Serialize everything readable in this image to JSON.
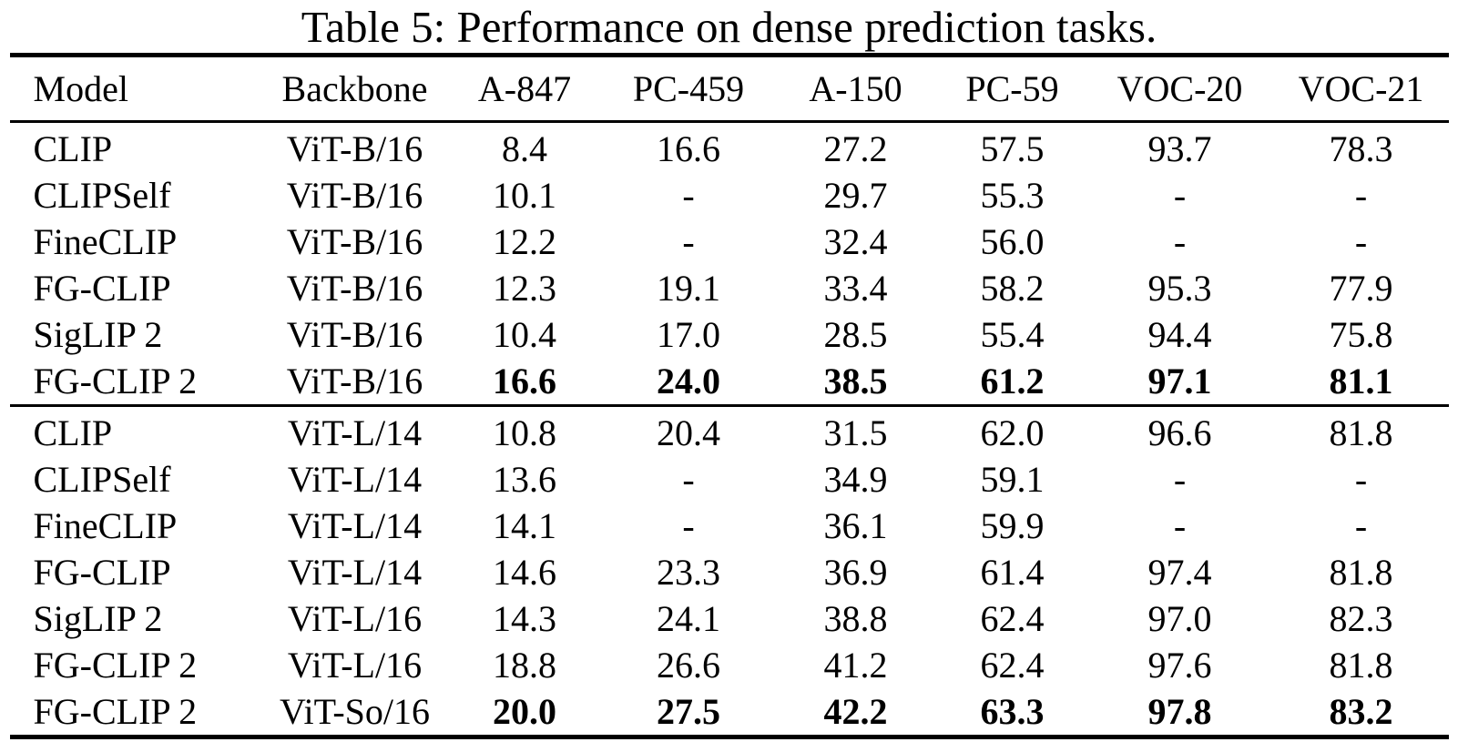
{
  "title": "Table 5: Performance on dense prediction tasks.",
  "colors": {
    "text": "#000000",
    "background": "#ffffff",
    "rule": "#000000"
  },
  "table": {
    "columns": [
      "Model",
      "Backbone",
      "A-847",
      "PC-459",
      "A-150",
      "PC-59",
      "VOC-20",
      "VOC-21"
    ],
    "groups": [
      {
        "rows": [
          {
            "model": "CLIP",
            "backbone": "ViT-B/16",
            "values": [
              "8.4",
              "16.6",
              "27.2",
              "57.5",
              "93.7",
              "78.3"
            ],
            "bold_values": false
          },
          {
            "model": "CLIPSelf",
            "backbone": "ViT-B/16",
            "values": [
              "10.1",
              "-",
              "29.7",
              "55.3",
              "-",
              "-"
            ],
            "bold_values": false
          },
          {
            "model": "FineCLIP",
            "backbone": "ViT-B/16",
            "values": [
              "12.2",
              "-",
              "32.4",
              "56.0",
              "-",
              "-"
            ],
            "bold_values": false
          },
          {
            "model": "FG-CLIP",
            "backbone": "ViT-B/16",
            "values": [
              "12.3",
              "19.1",
              "33.4",
              "58.2",
              "95.3",
              "77.9"
            ],
            "bold_values": false
          },
          {
            "model": "SigLIP 2",
            "backbone": "ViT-B/16",
            "values": [
              "10.4",
              "17.0",
              "28.5",
              "55.4",
              "94.4",
              "75.8"
            ],
            "bold_values": false
          },
          {
            "model": "FG-CLIP 2",
            "backbone": "ViT-B/16",
            "values": [
              "16.6",
              "24.0",
              "38.5",
              "61.2",
              "97.1",
              "81.1"
            ],
            "bold_values": true
          }
        ]
      },
      {
        "rows": [
          {
            "model": "CLIP",
            "backbone": "ViT-L/14",
            "values": [
              "10.8",
              "20.4",
              "31.5",
              "62.0",
              "96.6",
              "81.8"
            ],
            "bold_values": false
          },
          {
            "model": "CLIPSelf",
            "backbone": "ViT-L/14",
            "values": [
              "13.6",
              "-",
              "34.9",
              "59.1",
              "-",
              "-"
            ],
            "bold_values": false
          },
          {
            "model": "FineCLIP",
            "backbone": "ViT-L/14",
            "values": [
              "14.1",
              "-",
              "36.1",
              "59.9",
              "-",
              "-"
            ],
            "bold_values": false
          },
          {
            "model": "FG-CLIP",
            "backbone": "ViT-L/14",
            "values": [
              "14.6",
              "23.3",
              "36.9",
              "61.4",
              "97.4",
              "81.8"
            ],
            "bold_values": false
          },
          {
            "model": "SigLIP 2",
            "backbone": "ViT-L/16",
            "values": [
              "14.3",
              "24.1",
              "38.8",
              "62.4",
              "97.0",
              "82.3"
            ],
            "bold_values": false
          },
          {
            "model": "FG-CLIP 2",
            "backbone": "ViT-L/16",
            "values": [
              "18.8",
              "26.6",
              "41.2",
              "62.4",
              "97.6",
              "81.8"
            ],
            "bold_values": false
          },
          {
            "model": "FG-CLIP 2",
            "backbone": "ViT-So/16",
            "values": [
              "20.0",
              "27.5",
              "42.2",
              "63.3",
              "97.8",
              "83.2"
            ],
            "bold_values": true
          }
        ]
      }
    ]
  }
}
